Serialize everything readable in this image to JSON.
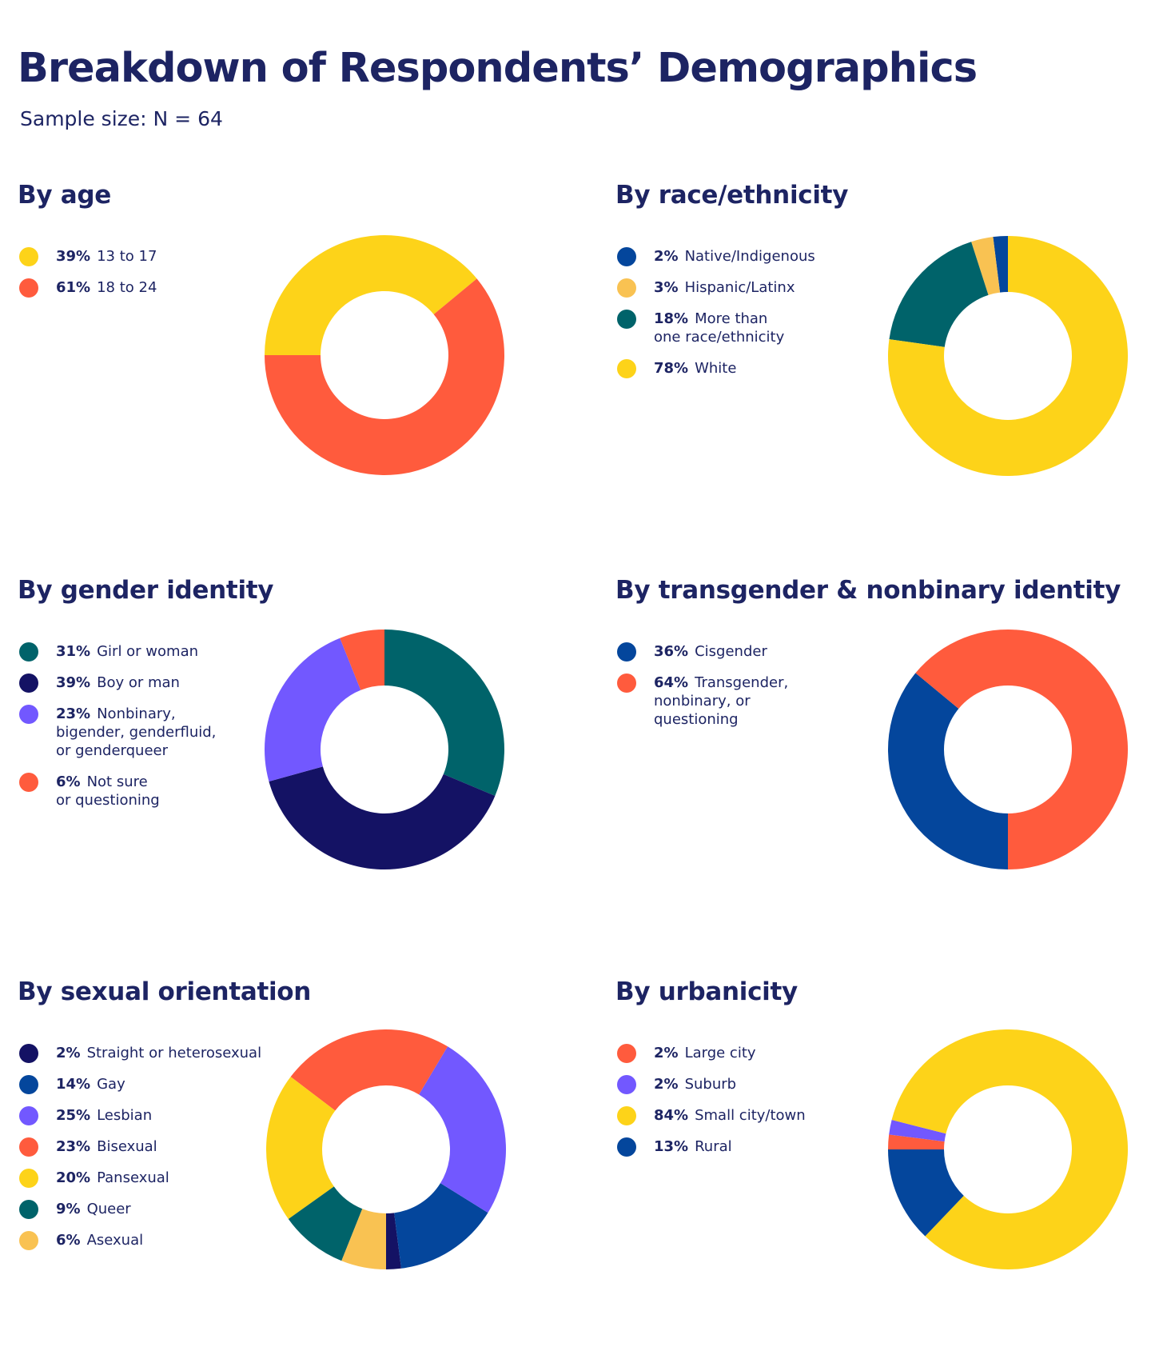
{
  "header": {
    "title": "Breakdown of Respondents’ Demographics",
    "subtitle": "Sample size: N = 64"
  },
  "colors": {
    "yellow": "#FDD319",
    "orange_red": "#FF5B3D",
    "teal": "#00636A",
    "navy": "#141264",
    "blue": "#04469C",
    "purple": "#7258FF",
    "light_orange": "#F9C252"
  },
  "chart_data": [
    {
      "type": "pie",
      "title": "By age",
      "series": [
        {
          "label": "13 to 17",
          "pct_label": "39%",
          "value": 39,
          "color": "#FDD319"
        },
        {
          "label": "18 to 24",
          "pct_label": "61%",
          "value": 61,
          "color": "#FF5B3D"
        }
      ]
    },
    {
      "type": "pie",
      "title": "By race/ethnicity",
      "series": [
        {
          "label": "Native/Indigenous",
          "pct_label": "2%",
          "value": 2,
          "color": "#04469C"
        },
        {
          "label": "Hispanic/Latinx",
          "pct_label": "3%",
          "value": 3,
          "color": "#F9C252"
        },
        {
          "label": "More than\none race/ethnicity",
          "pct_label": "18%",
          "value": 18,
          "color": "#00636A"
        },
        {
          "label": "White",
          "pct_label": "78%",
          "value": 78,
          "color": "#FDD319"
        }
      ]
    },
    {
      "type": "pie",
      "title": "By gender identity",
      "series": [
        {
          "label": "Girl or woman",
          "pct_label": "31%",
          "value": 31,
          "color": "#00636A"
        },
        {
          "label": "Boy or man",
          "pct_label": "39%",
          "value": 39,
          "color": "#141264"
        },
        {
          "label": "Nonbinary,\nbigender, genderfluid,\nor genderqueer",
          "pct_label": "23%",
          "value": 23,
          "color": "#7258FF"
        },
        {
          "label": "Not sure\nor questioning",
          "pct_label": "6%",
          "value": 6,
          "color": "#FF5B3D"
        }
      ]
    },
    {
      "type": "pie",
      "title": "By transgender & nonbinary identity",
      "series": [
        {
          "label": "Cisgender",
          "pct_label": "36%",
          "value": 36,
          "color": "#04469C"
        },
        {
          "label": "Transgender,\nnonbinary, or\nquestioning",
          "pct_label": "64%",
          "value": 64,
          "color": "#FF5B3D"
        }
      ]
    },
    {
      "type": "pie",
      "title": "By sexual orientation",
      "series": [
        {
          "label": "Straight or heterosexual",
          "pct_label": "2%",
          "value": 2,
          "color": "#141264"
        },
        {
          "label": "Gay",
          "pct_label": "14%",
          "value": 14,
          "color": "#04469C"
        },
        {
          "label": "Lesbian",
          "pct_label": "25%",
          "value": 25,
          "color": "#7258FF"
        },
        {
          "label": "Bisexual",
          "pct_label": "23%",
          "value": 23,
          "color": "#FF5B3D"
        },
        {
          "label": "Pansexual",
          "pct_label": "20%",
          "value": 20,
          "color": "#FDD319"
        },
        {
          "label": "Queer",
          "pct_label": "9%",
          "value": 9,
          "color": "#00636A"
        },
        {
          "label": "Asexual",
          "pct_label": "6%",
          "value": 6,
          "color": "#F9C252"
        }
      ]
    },
    {
      "type": "pie",
      "title": "By urbanicity",
      "series": [
        {
          "label": "Large city",
          "pct_label": "2%",
          "value": 2,
          "color": "#FF5B3D"
        },
        {
          "label": "Suburb",
          "pct_label": "2%",
          "value": 2,
          "color": "#7258FF"
        },
        {
          "label": "Small city/town",
          "pct_label": "84%",
          "value": 84,
          "color": "#FDD319"
        },
        {
          "label": "Rural",
          "pct_label": "13%",
          "value": 13,
          "color": "#04469C"
        }
      ]
    }
  ]
}
